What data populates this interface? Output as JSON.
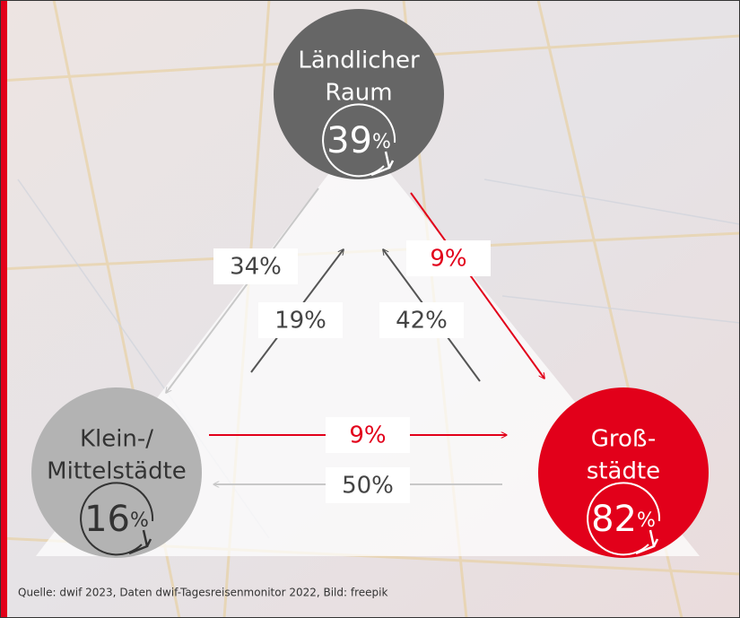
{
  "nodes": [
    {
      "label": [
        "Ländlicher",
        "Raum"
      ],
      "value": "39",
      "unit": "%"
    },
    {
      "label": [
        "Klein-/",
        "Mittelstädte"
      ],
      "value": "16",
      "unit": "%"
    },
    {
      "label": [
        "Groß-",
        "städte"
      ],
      "value": "82",
      "unit": "%"
    }
  ],
  "flows": [
    {
      "label": "34%"
    },
    {
      "label": "19%"
    },
    {
      "label": "42%"
    },
    {
      "label": "9%"
    },
    {
      "label": "9%"
    },
    {
      "label": "50%"
    }
  ],
  "source": "Quelle: dwif 2023, Daten dwif-Tagesreisenmonitor 2022, Bild: freepik"
}
